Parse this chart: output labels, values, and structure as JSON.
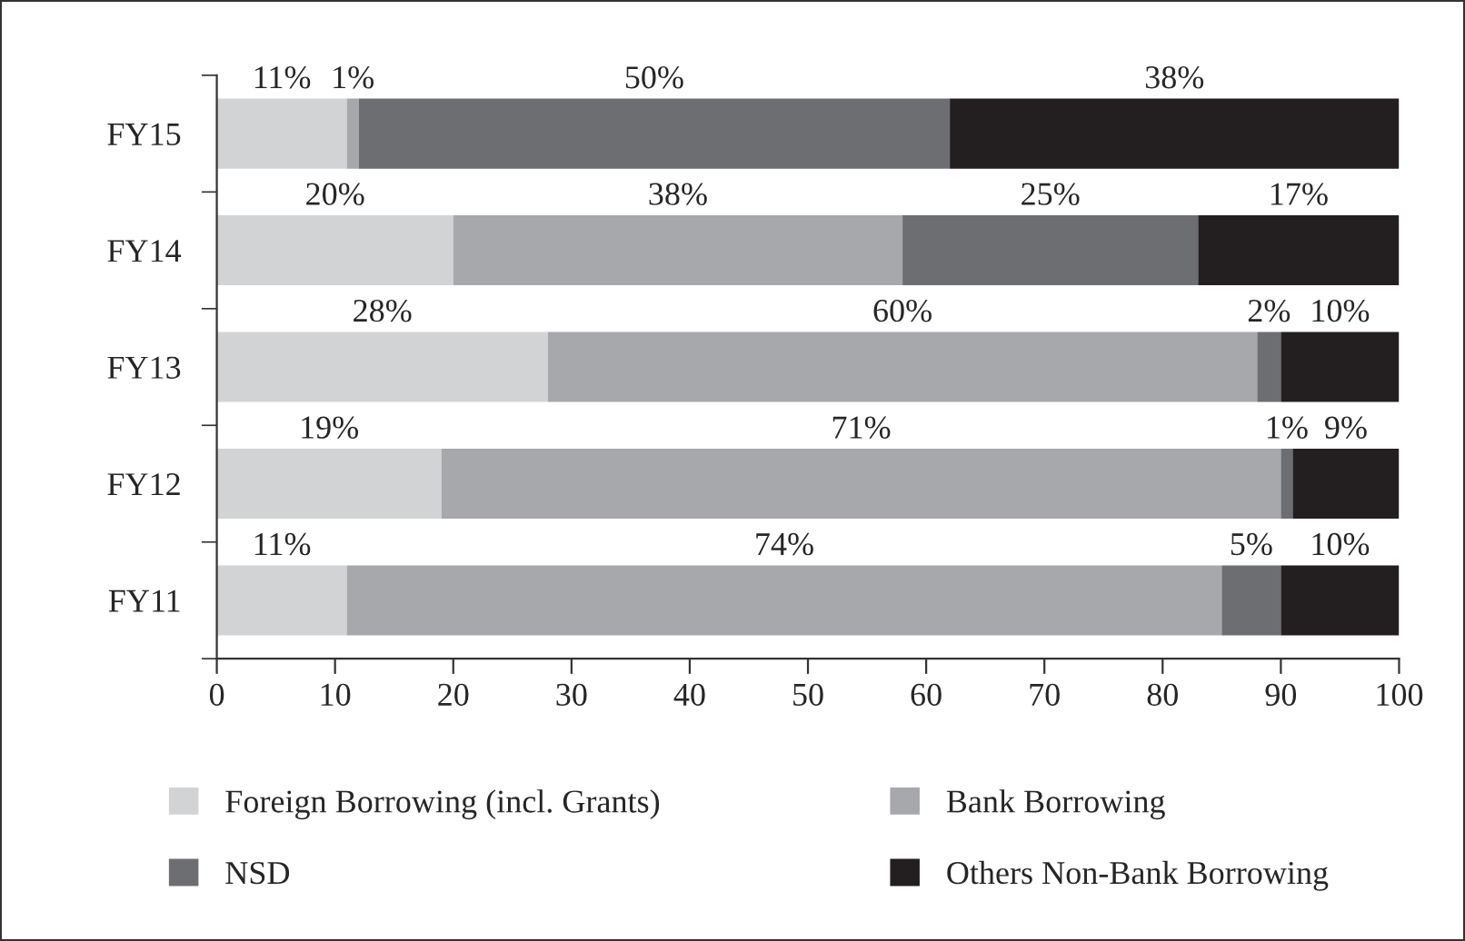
{
  "chart_data": {
    "type": "bar",
    "orientation": "horizontal",
    "stacked": true,
    "categories": [
      "FY15",
      "FY14",
      "FY13",
      "FY12",
      "FY11"
    ],
    "series": [
      {
        "name": "Foreign Borrowing (incl. Grants)",
        "color": "#d2d3d5",
        "values": [
          11,
          20,
          28,
          19,
          11
        ],
        "value_labels": [
          "11%",
          "20%",
          "28%",
          "19%",
          "11%"
        ]
      },
      {
        "name": "Bank Borrowing",
        "color": "#a7a8ac",
        "values": [
          1,
          38,
          60,
          71,
          74
        ],
        "value_labels": [
          "1%",
          "38%",
          "60%",
          "71%",
          "74%"
        ]
      },
      {
        "name": "NSD",
        "color": "#6d6e72",
        "values": [
          50,
          25,
          2,
          1,
          5
        ],
        "value_labels": [
          "50%",
          "25%",
          "2%",
          "1%",
          "5%"
        ]
      },
      {
        "name": "Others Non-Bank Borrowing",
        "color": "#231f20",
        "values": [
          38,
          17,
          10,
          9,
          10
        ],
        "value_labels": [
          "38%",
          "17%",
          "10%",
          "9%",
          "10%"
        ]
      }
    ],
    "xlim": [
      0,
      100
    ],
    "xticks": [
      0,
      10,
      20,
      30,
      40,
      50,
      60,
      70,
      80,
      90,
      100
    ],
    "grid": false,
    "legend": "bottom"
  }
}
